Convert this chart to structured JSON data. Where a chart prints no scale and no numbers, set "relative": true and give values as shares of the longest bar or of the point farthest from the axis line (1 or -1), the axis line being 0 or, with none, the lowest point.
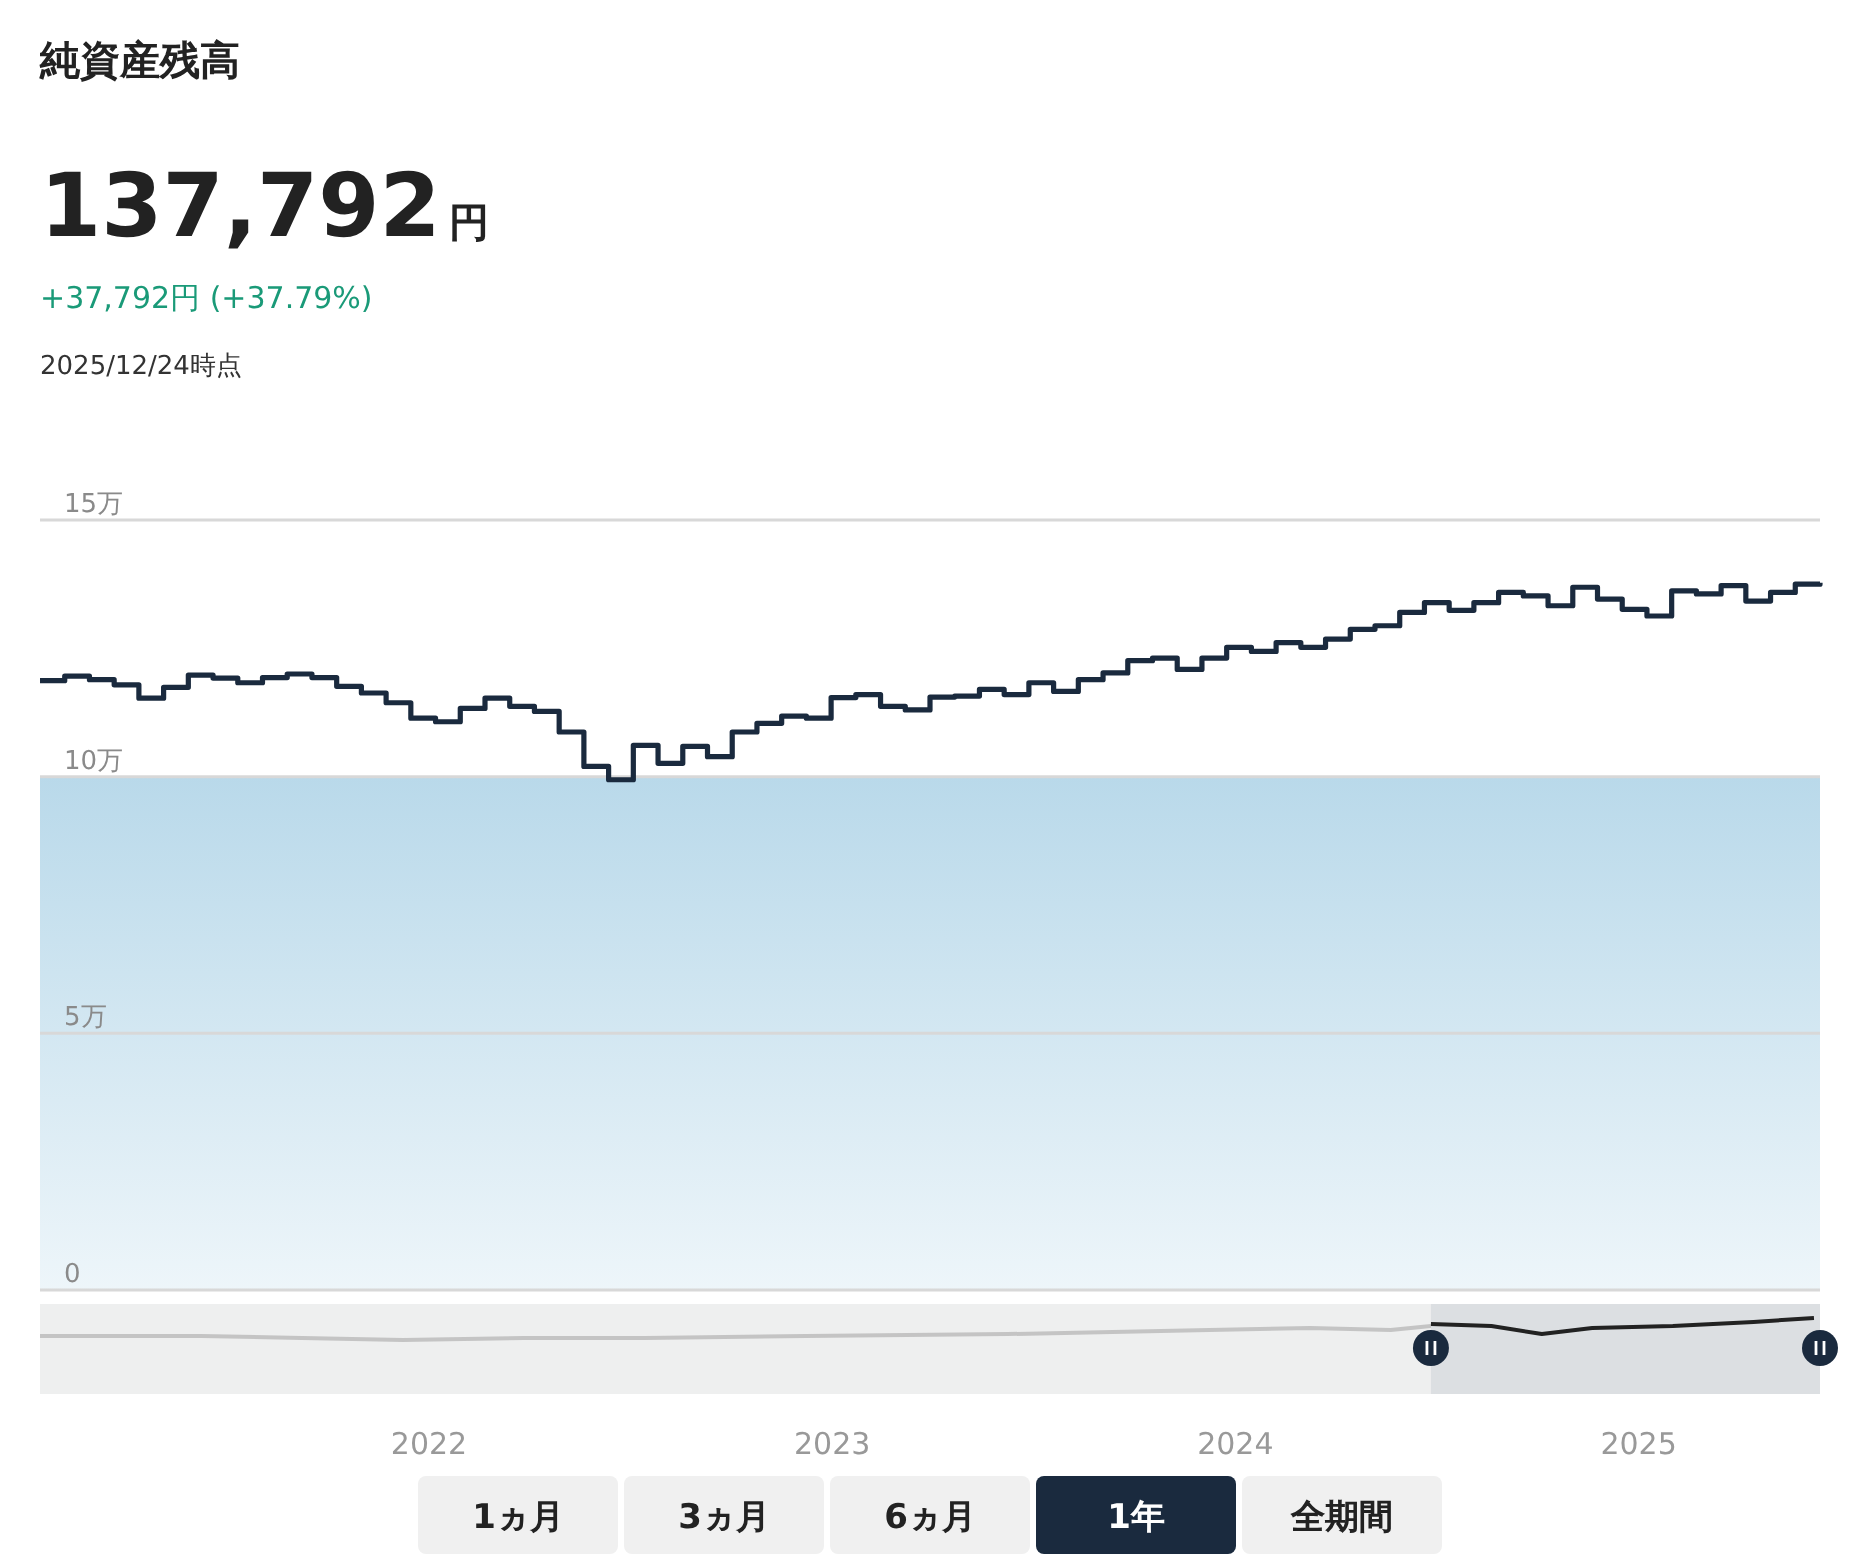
{
  "chart_data": [
    {
      "type": "step",
      "title": "純資産残高",
      "subtitle": "137,792円",
      "annotations": [
        "+37,792円 (+37.79%)",
        "2025/12/24時点"
      ],
      "categories": [
        null,
        null,
        null,
        null,
        null,
        null,
        null,
        null,
        null,
        null,
        null,
        null,
        null,
        null,
        null,
        null,
        null,
        null,
        null,
        null,
        null,
        null,
        null,
        null,
        null,
        null,
        null,
        null,
        null,
        null,
        null,
        null,
        null,
        null,
        null,
        null,
        null,
        null,
        null,
        null,
        null,
        null,
        null,
        null,
        null,
        null,
        null,
        null,
        null,
        null,
        null,
        null,
        null,
        null,
        null,
        null,
        null,
        null,
        null,
        null,
        null,
        null,
        null,
        null,
        null,
        null,
        null,
        null,
        null,
        null,
        null,
        null,
        null
      ],
      "series": [
        {
          "color": "#1a2a3e",
          "values": [
            11.87,
            11.96,
            11.89,
            11.79,
            11.53,
            11.74,
            11.98,
            11.92,
            11.83,
            11.93,
            12.0,
            11.93,
            11.76,
            11.63,
            11.44,
            11.14,
            11.07,
            11.33,
            11.53,
            11.37,
            11.27,
            10.87,
            10.2,
            9.94,
            10.61,
            10.26,
            10.59,
            10.39,
            10.87,
            11.04,
            11.18,
            11.14,
            11.54,
            11.6,
            11.37,
            11.3,
            11.55,
            11.57,
            11.7,
            11.6,
            11.83,
            11.66,
            11.89,
            12.02,
            12.26,
            12.31,
            12.09,
            12.31,
            12.52,
            12.44,
            12.61,
            12.52,
            12.68,
            12.87,
            12.94,
            13.2,
            13.39,
            13.24,
            13.39,
            13.59,
            13.52,
            13.33,
            13.69,
            13.46,
            13.26,
            13.13,
            13.62,
            13.56,
            13.72,
            13.42,
            13.59,
            13.75,
            13.78
          ]
        }
      ],
      "ylim": [
        0,
        15
      ],
      "yticks": [
        0,
        {
          "value": 5,
          "label": "5万"
        },
        {
          "value": 10,
          "label": "10万"
        },
        {
          "value": 15,
          "label": "15万"
        }
      ],
      "grid": "y",
      "tick_labels": "y",
      "bands": [
        {
          "axis": "y",
          "from": 0,
          "to": 10,
          "color": "#b9d9ea"
        }
      ]
    },
    {
      "type": "line",
      "relative": true,
      "xlim": [
        2021.035,
        2025.45
      ],
      "xticks": [
        2022,
        2023,
        2024,
        2025
      ],
      "tick_labels": "x",
      "bands": [
        {
          "axis": "x",
          "from": 2024.485,
          "to": 2025.45,
          "color": "#dcdfe2"
        }
      ],
      "series": [
        {
          "color": "#c4c4c4",
          "x": [
            2021.035,
            2021.435,
            2021.685,
            2021.935,
            2022.235,
            2022.535,
            2022.935,
            2023.435,
            2023.935,
            2024.185,
            2024.385,
            2024.485
          ],
          "values": [
            0.18,
            0.18,
            0.09,
            0,
            0.09,
            0.09,
            0.18,
            0.27,
            0.45,
            0.55,
            0.45,
            0.64
          ]
        },
        {
          "color": "#222222",
          "x": [
            2024.485,
            2024.635,
            2024.76,
            2024.885,
            2025.085,
            2025.285,
            2025.435
          ],
          "values": [
            0.73,
            0.64,
            0.27,
            0.55,
            0.64,
            0.82,
            1
          ]
        }
      ]
    },
    {
      "type": "other",
      "categories": [
        "1ヵ月",
        "3ヵ月",
        "6ヵ月",
        "1年",
        "全期間"
      ],
      "colors": [
        "#f0f0f0",
        "#f0f0f0",
        "#f0f0f0",
        "#1a2a3e",
        "#f0f0f0"
      ]
    }
  ]
}
